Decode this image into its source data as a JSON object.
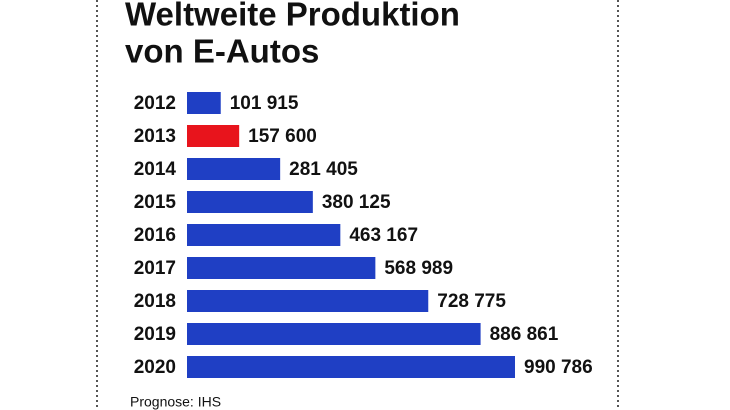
{
  "chart_data": {
    "type": "hbar",
    "title": [
      "Weltweite Produktion",
      "von E-Autos"
    ],
    "categories": [
      "2012",
      "2013",
      "2014",
      "2015",
      "2016",
      "2017",
      "2018",
      "2019",
      "2020"
    ],
    "values": [
      101915,
      157600,
      281405,
      380125,
      463167,
      568989,
      728775,
      886861,
      990786
    ],
    "value_labels": [
      "101 915",
      "157 600",
      "281 405",
      "380 125",
      "463 167",
      "568 989",
      "728 775",
      "886 861",
      "990 786"
    ],
    "colors": [
      "#1f3fc4",
      "#e8141c",
      "#1f3fc4",
      "#1f3fc4",
      "#1f3fc4",
      "#1f3fc4",
      "#1f3fc4",
      "#1f3fc4",
      "#1f3fc4"
    ],
    "source": "Prognose: IHS"
  }
}
